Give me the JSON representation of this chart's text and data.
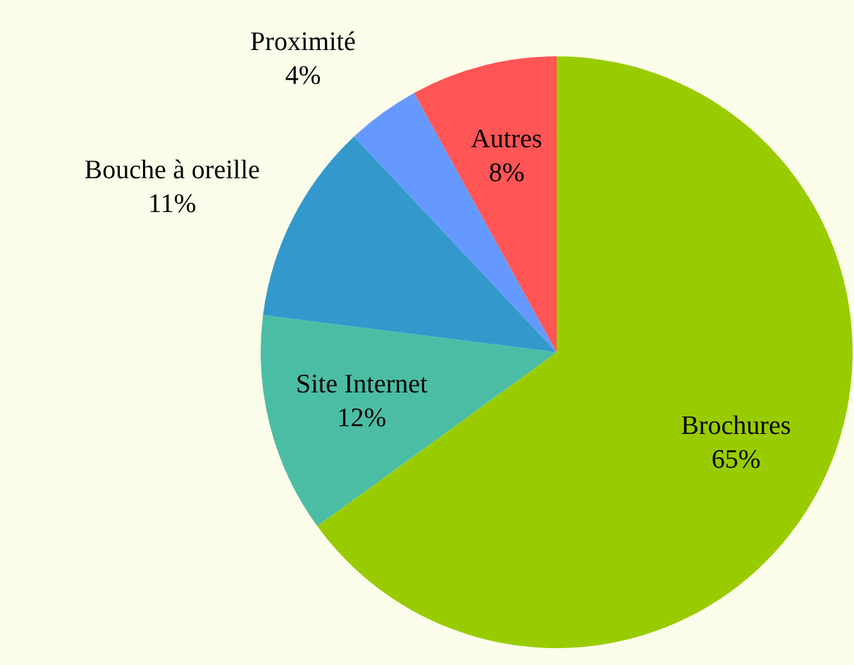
{
  "chart_data": {
    "type": "pie",
    "categories": [
      "Brochures",
      "Site Internet",
      "Bouche à oreille",
      "Proximité",
      "Autres"
    ],
    "values": [
      65,
      12,
      11,
      4,
      8
    ],
    "colors": [
      "#99cc00",
      "#4bbda4",
      "#3399cc",
      "#6699ff",
      "#ff5555"
    ],
    "value_labels": [
      "65%",
      "12%",
      "11%",
      "4%",
      "8%"
    ],
    "legend": false
  }
}
